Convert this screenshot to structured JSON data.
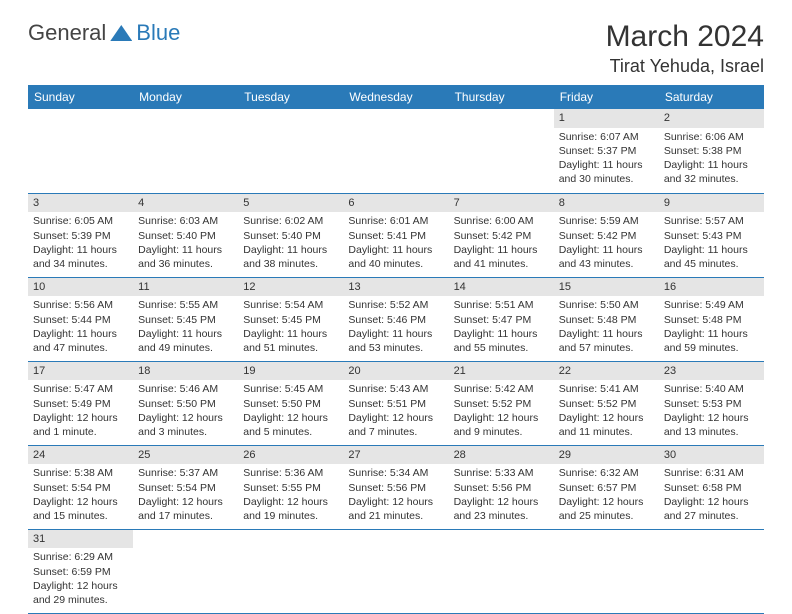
{
  "logo": {
    "text1": "General",
    "text2": "Blue"
  },
  "title": "March 2024",
  "location": "Tirat Yehuda, Israel",
  "weekdays": [
    "Sunday",
    "Monday",
    "Tuesday",
    "Wednesday",
    "Thursday",
    "Friday",
    "Saturday"
  ],
  "colors": {
    "header_bg": "#2a7ab8",
    "daynum_bg": "#e5e5e5",
    "border": "#2a7ab8"
  },
  "grid": [
    [
      null,
      null,
      null,
      null,
      null,
      {
        "n": "1",
        "sunrise": "Sunrise: 6:07 AM",
        "sunset": "Sunset: 5:37 PM",
        "daylight": "Daylight: 11 hours and 30 minutes."
      },
      {
        "n": "2",
        "sunrise": "Sunrise: 6:06 AM",
        "sunset": "Sunset: 5:38 PM",
        "daylight": "Daylight: 11 hours and 32 minutes."
      }
    ],
    [
      {
        "n": "3",
        "sunrise": "Sunrise: 6:05 AM",
        "sunset": "Sunset: 5:39 PM",
        "daylight": "Daylight: 11 hours and 34 minutes."
      },
      {
        "n": "4",
        "sunrise": "Sunrise: 6:03 AM",
        "sunset": "Sunset: 5:40 PM",
        "daylight": "Daylight: 11 hours and 36 minutes."
      },
      {
        "n": "5",
        "sunrise": "Sunrise: 6:02 AM",
        "sunset": "Sunset: 5:40 PM",
        "daylight": "Daylight: 11 hours and 38 minutes."
      },
      {
        "n": "6",
        "sunrise": "Sunrise: 6:01 AM",
        "sunset": "Sunset: 5:41 PM",
        "daylight": "Daylight: 11 hours and 40 minutes."
      },
      {
        "n": "7",
        "sunrise": "Sunrise: 6:00 AM",
        "sunset": "Sunset: 5:42 PM",
        "daylight": "Daylight: 11 hours and 41 minutes."
      },
      {
        "n": "8",
        "sunrise": "Sunrise: 5:59 AM",
        "sunset": "Sunset: 5:42 PM",
        "daylight": "Daylight: 11 hours and 43 minutes."
      },
      {
        "n": "9",
        "sunrise": "Sunrise: 5:57 AM",
        "sunset": "Sunset: 5:43 PM",
        "daylight": "Daylight: 11 hours and 45 minutes."
      }
    ],
    [
      {
        "n": "10",
        "sunrise": "Sunrise: 5:56 AM",
        "sunset": "Sunset: 5:44 PM",
        "daylight": "Daylight: 11 hours and 47 minutes."
      },
      {
        "n": "11",
        "sunrise": "Sunrise: 5:55 AM",
        "sunset": "Sunset: 5:45 PM",
        "daylight": "Daylight: 11 hours and 49 minutes."
      },
      {
        "n": "12",
        "sunrise": "Sunrise: 5:54 AM",
        "sunset": "Sunset: 5:45 PM",
        "daylight": "Daylight: 11 hours and 51 minutes."
      },
      {
        "n": "13",
        "sunrise": "Sunrise: 5:52 AM",
        "sunset": "Sunset: 5:46 PM",
        "daylight": "Daylight: 11 hours and 53 minutes."
      },
      {
        "n": "14",
        "sunrise": "Sunrise: 5:51 AM",
        "sunset": "Sunset: 5:47 PM",
        "daylight": "Daylight: 11 hours and 55 minutes."
      },
      {
        "n": "15",
        "sunrise": "Sunrise: 5:50 AM",
        "sunset": "Sunset: 5:48 PM",
        "daylight": "Daylight: 11 hours and 57 minutes."
      },
      {
        "n": "16",
        "sunrise": "Sunrise: 5:49 AM",
        "sunset": "Sunset: 5:48 PM",
        "daylight": "Daylight: 11 hours and 59 minutes."
      }
    ],
    [
      {
        "n": "17",
        "sunrise": "Sunrise: 5:47 AM",
        "sunset": "Sunset: 5:49 PM",
        "daylight": "Daylight: 12 hours and 1 minute."
      },
      {
        "n": "18",
        "sunrise": "Sunrise: 5:46 AM",
        "sunset": "Sunset: 5:50 PM",
        "daylight": "Daylight: 12 hours and 3 minutes."
      },
      {
        "n": "19",
        "sunrise": "Sunrise: 5:45 AM",
        "sunset": "Sunset: 5:50 PM",
        "daylight": "Daylight: 12 hours and 5 minutes."
      },
      {
        "n": "20",
        "sunrise": "Sunrise: 5:43 AM",
        "sunset": "Sunset: 5:51 PM",
        "daylight": "Daylight: 12 hours and 7 minutes."
      },
      {
        "n": "21",
        "sunrise": "Sunrise: 5:42 AM",
        "sunset": "Sunset: 5:52 PM",
        "daylight": "Daylight: 12 hours and 9 minutes."
      },
      {
        "n": "22",
        "sunrise": "Sunrise: 5:41 AM",
        "sunset": "Sunset: 5:52 PM",
        "daylight": "Daylight: 12 hours and 11 minutes."
      },
      {
        "n": "23",
        "sunrise": "Sunrise: 5:40 AM",
        "sunset": "Sunset: 5:53 PM",
        "daylight": "Daylight: 12 hours and 13 minutes."
      }
    ],
    [
      {
        "n": "24",
        "sunrise": "Sunrise: 5:38 AM",
        "sunset": "Sunset: 5:54 PM",
        "daylight": "Daylight: 12 hours and 15 minutes."
      },
      {
        "n": "25",
        "sunrise": "Sunrise: 5:37 AM",
        "sunset": "Sunset: 5:54 PM",
        "daylight": "Daylight: 12 hours and 17 minutes."
      },
      {
        "n": "26",
        "sunrise": "Sunrise: 5:36 AM",
        "sunset": "Sunset: 5:55 PM",
        "daylight": "Daylight: 12 hours and 19 minutes."
      },
      {
        "n": "27",
        "sunrise": "Sunrise: 5:34 AM",
        "sunset": "Sunset: 5:56 PM",
        "daylight": "Daylight: 12 hours and 21 minutes."
      },
      {
        "n": "28",
        "sunrise": "Sunrise: 5:33 AM",
        "sunset": "Sunset: 5:56 PM",
        "daylight": "Daylight: 12 hours and 23 minutes."
      },
      {
        "n": "29",
        "sunrise": "Sunrise: 6:32 AM",
        "sunset": "Sunset: 6:57 PM",
        "daylight": "Daylight: 12 hours and 25 minutes."
      },
      {
        "n": "30",
        "sunrise": "Sunrise: 6:31 AM",
        "sunset": "Sunset: 6:58 PM",
        "daylight": "Daylight: 12 hours and 27 minutes."
      }
    ],
    [
      {
        "n": "31",
        "sunrise": "Sunrise: 6:29 AM",
        "sunset": "Sunset: 6:59 PM",
        "daylight": "Daylight: 12 hours and 29 minutes."
      },
      null,
      null,
      null,
      null,
      null,
      null
    ]
  ]
}
